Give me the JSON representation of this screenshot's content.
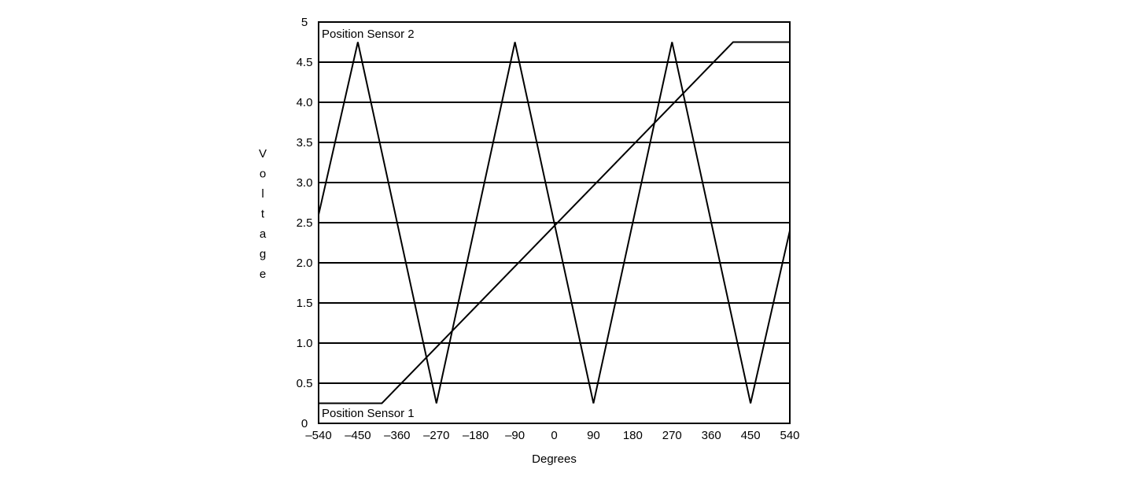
{
  "chart_data": {
    "type": "line",
    "title": "",
    "xlabel": "Degrees",
    "ylabel": "Voltage",
    "xlim": [
      -540,
      540
    ],
    "ylim": [
      0,
      5
    ],
    "grid": "horizontal",
    "x_ticks": [
      {
        "value": -540,
        "label": "–540"
      },
      {
        "value": -450,
        "label": "–450"
      },
      {
        "value": -360,
        "label": "–360"
      },
      {
        "value": -270,
        "label": "–270"
      },
      {
        "value": -180,
        "label": "–180"
      },
      {
        "value": -90,
        "label": "–90"
      },
      {
        "value": 0,
        "label": "0"
      },
      {
        "value": 90,
        "label": "90"
      },
      {
        "value": 180,
        "label": "180"
      },
      {
        "value": 270,
        "label": "270"
      },
      {
        "value": 360,
        "label": "360"
      },
      {
        "value": 450,
        "label": "450"
      },
      {
        "value": 540,
        "label": "540"
      }
    ],
    "y_ticks": [
      {
        "value": 0,
        "label": "0"
      },
      {
        "value": 0.5,
        "label": "0.5"
      },
      {
        "value": 1.0,
        "label": "1.0"
      },
      {
        "value": 1.5,
        "label": "1.5"
      },
      {
        "value": 2.0,
        "label": "2.0"
      },
      {
        "value": 2.5,
        "label": "2.5"
      },
      {
        "value": 3.0,
        "label": "3.0"
      },
      {
        "value": 3.5,
        "label": "3.5"
      },
      {
        "value": 4.0,
        "label": "4.0"
      },
      {
        "value": 4.5,
        "label": "4.5"
      },
      {
        "value": 5,
        "label": "5"
      }
    ],
    "series": [
      {
        "name": "Position Sensor 1",
        "x": [
          -540,
          -395,
          410,
          540
        ],
        "y": [
          0.25,
          0.25,
          4.75,
          4.75
        ]
      },
      {
        "name": "Position Sensor 2",
        "x": [
          -540,
          -450,
          -270,
          -90,
          90,
          270,
          450,
          540
        ],
        "y": [
          2.6,
          4.75,
          0.25,
          4.75,
          0.25,
          4.75,
          0.25,
          2.4
        ]
      }
    ]
  }
}
